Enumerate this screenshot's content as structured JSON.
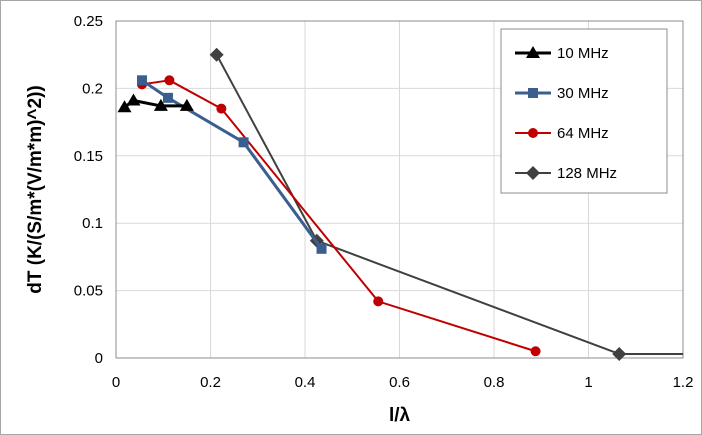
{
  "chart_data": {
    "type": "line",
    "title": "",
    "xlabel": "l/λ",
    "ylabel": "dT (K/(S/m*(V/m*m)^2))",
    "xlim": [
      0,
      1.2
    ],
    "ylim": [
      0,
      0.25
    ],
    "xticks": [
      0,
      0.2,
      0.4,
      0.6,
      0.8,
      1,
      1.2
    ],
    "yticks": [
      0,
      0.05,
      0.1,
      0.15,
      0.2,
      0.25
    ],
    "xtick_labels": [
      "0",
      "0.2",
      "0.4",
      "0.6",
      "0.8",
      "1",
      "1.2"
    ],
    "ytick_labels": [
      "0",
      "0.05",
      "0.1",
      "0.15",
      "0.2",
      "0.25"
    ],
    "grid": true,
    "legend_position": "top-right",
    "series": [
      {
        "name": "10 MHz",
        "color": "#000000",
        "marker": "triangle",
        "x": [
          0.018,
          0.037,
          0.095,
          0.15
        ],
        "y": [
          0.186,
          0.191,
          0.187,
          0.187
        ]
      },
      {
        "name": "30 MHz",
        "color": "#3a5f8f",
        "marker": "square",
        "x": [
          0.055,
          0.11,
          0.27,
          0.435
        ],
        "y": [
          0.206,
          0.193,
          0.16,
          0.081
        ]
      },
      {
        "name": "64 MHz",
        "color": "#c00000",
        "marker": "circle",
        "x": [
          0.055,
          0.113,
          0.223,
          0.555,
          0.888
        ],
        "y": [
          0.203,
          0.206,
          0.185,
          0.042,
          0.005
        ]
      },
      {
        "name": "128 MHz",
        "color": "#404040",
        "marker": "diamond",
        "x": [
          0.213,
          0.425,
          1.065,
          1.2
        ],
        "y": [
          0.225,
          0.087,
          0.003,
          0.003
        ]
      }
    ]
  }
}
